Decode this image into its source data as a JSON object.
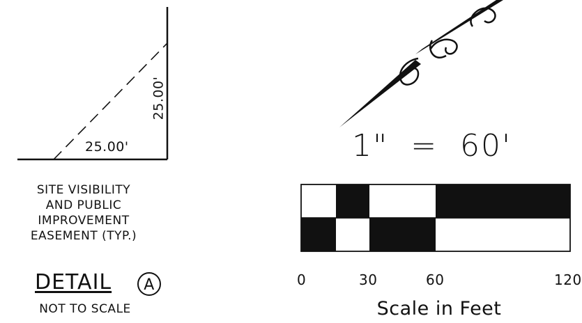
{
  "detail_diagram": {
    "dim_horizontal": "25.00'",
    "dim_vertical": "25.00'"
  },
  "easement_note": {
    "lines": [
      "SITE VISIBILITY",
      "AND PUBLIC",
      "IMPROVEMENT",
      "EASEMENT (TYP.)"
    ]
  },
  "detail": {
    "title": "DETAIL",
    "marker": "A",
    "subtitle": "NOT TO SCALE"
  },
  "scale_bar": {
    "ratio_text": "1\"  =  60'",
    "tick_labels": [
      "0",
      "30",
      "60",
      "120"
    ],
    "caption": "Scale in Feet"
  }
}
